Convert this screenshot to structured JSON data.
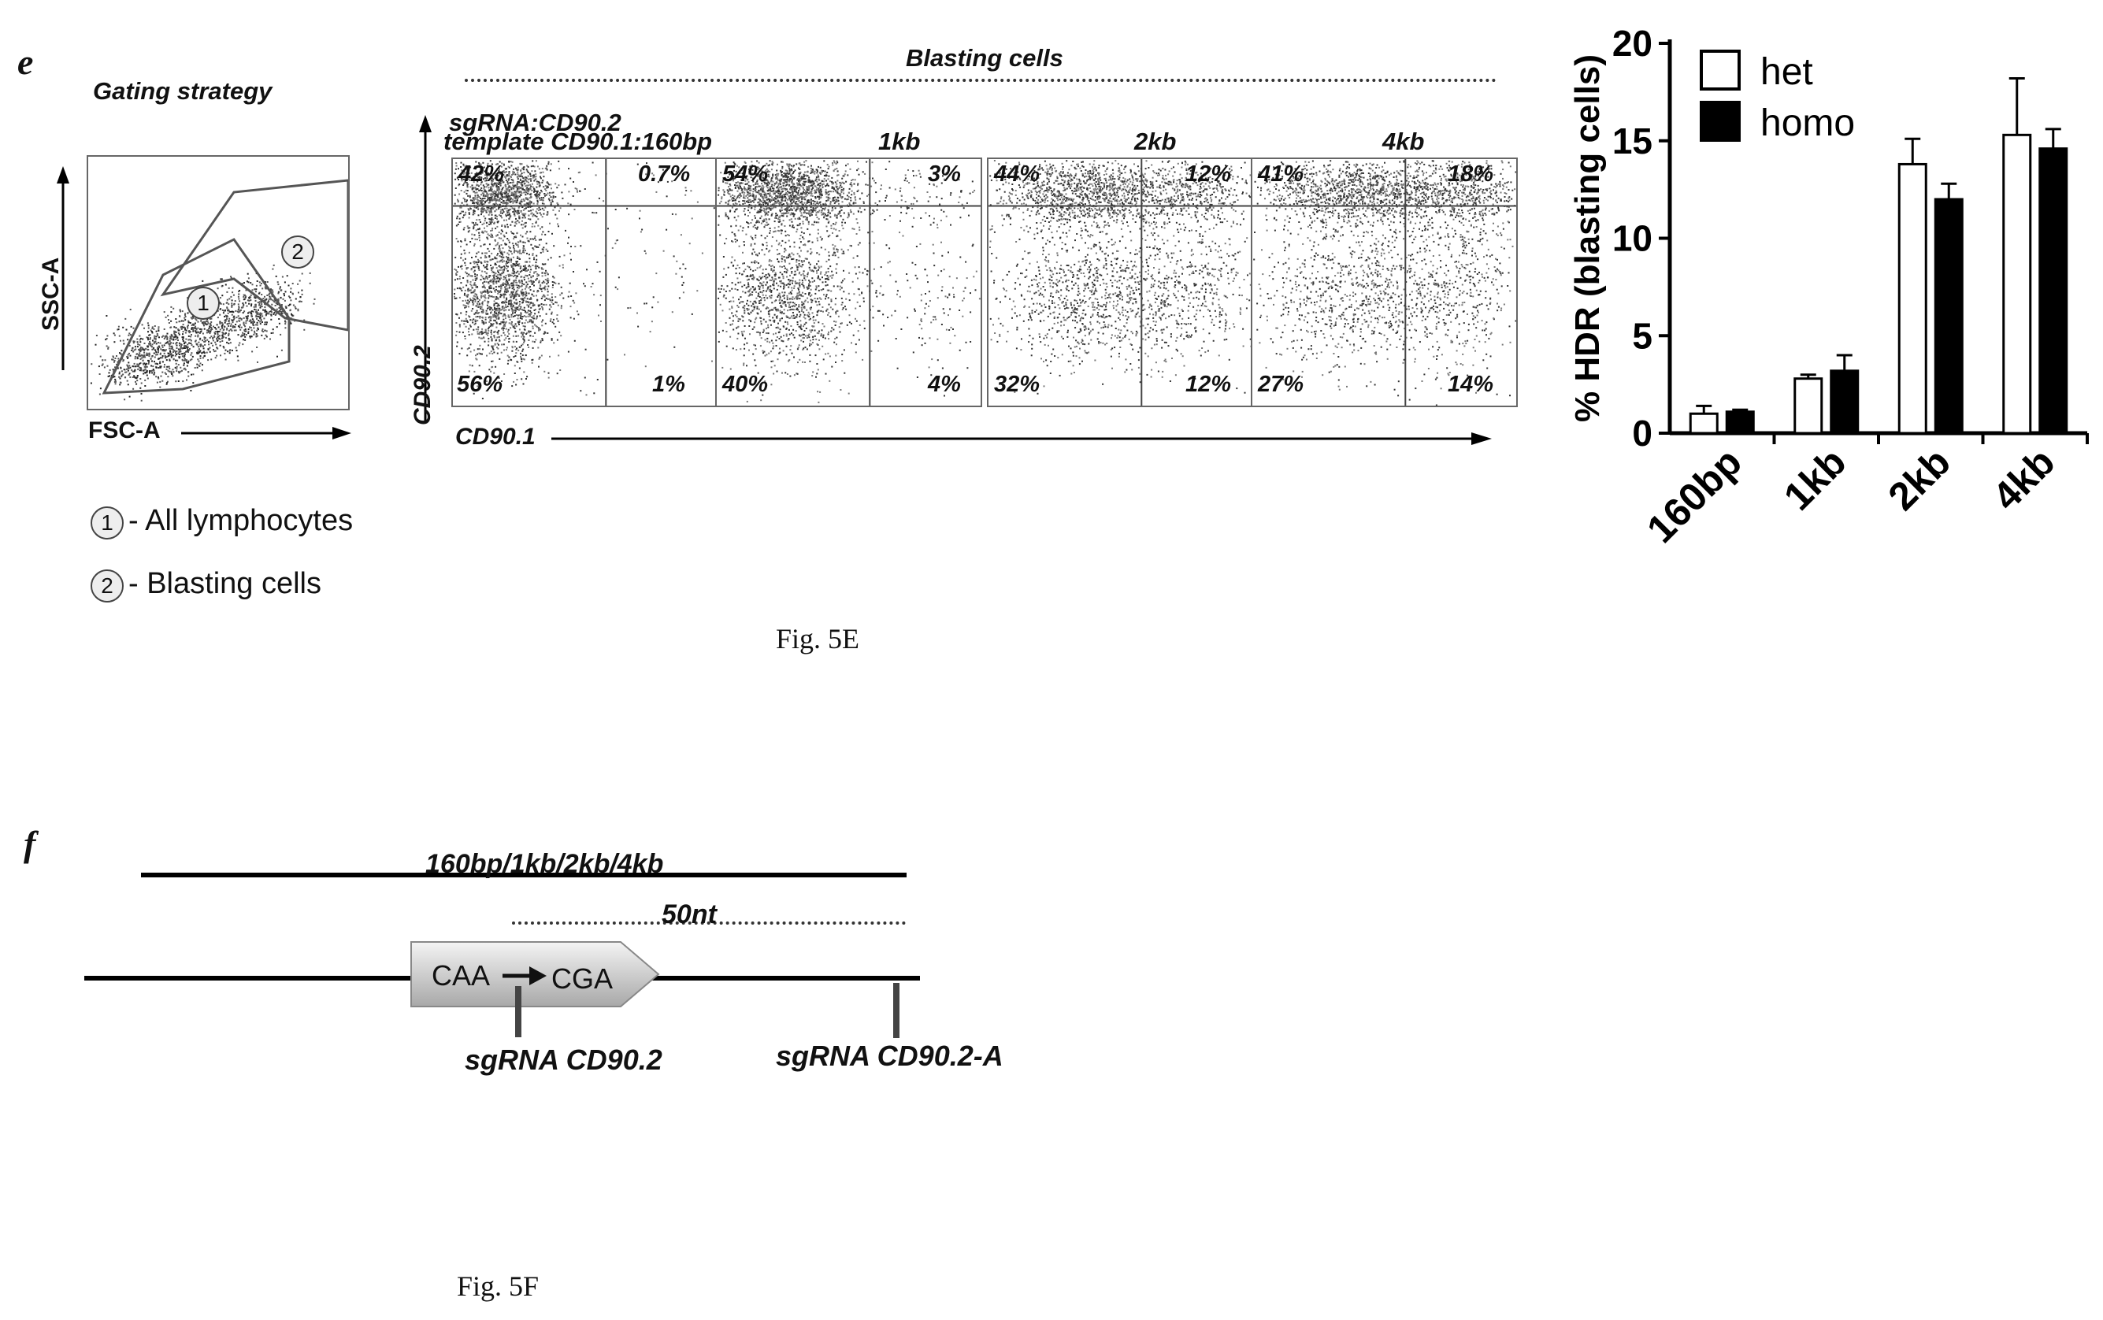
{
  "panel_e": {
    "letter": "e",
    "gating": {
      "title": "Gating strategy",
      "y_axis": "SSC-A",
      "x_axis": "FSC-A",
      "gate1_num": "1",
      "gate2_num": "2",
      "legend": [
        {
          "num": "1",
          "text": "- All lymphocytes"
        },
        {
          "num": "2",
          "text": "- Blasting cells"
        }
      ]
    },
    "facs": {
      "header": "Blasting cells",
      "sgrna_label": "sgRNA:CD90.2",
      "template_label": "template  CD90.1:160bp",
      "y_axis": "CD90.2",
      "x_axis": "CD90.1",
      "panels": [
        {
          "label": "",
          "ul": "42%",
          "ur": "0.7%",
          "ll": "56%",
          "lr": "1%"
        },
        {
          "label": "1kb",
          "ul": "54%",
          "ur": "3%",
          "ll": "40%",
          "lr": "4%"
        },
        {
          "label": "2kb",
          "ul": "44%",
          "ur": "12%",
          "ll": "32%",
          "lr": "12%"
        },
        {
          "label": "4kb",
          "ul": "41%",
          "ur": "18%",
          "ll": "27%",
          "lr": "14%"
        }
      ]
    },
    "caption": "Fig. 5E"
  },
  "chart_data": {
    "type": "bar",
    "categories": [
      "160bp",
      "1kb",
      "2kb",
      "4kb"
    ],
    "series": [
      {
        "name": "het",
        "values": [
          1.0,
          2.8,
          13.8,
          15.3
        ],
        "errors": [
          0.4,
          0.2,
          1.3,
          2.9
        ],
        "color": "#ffffff"
      },
      {
        "name": "homo",
        "values": [
          1.1,
          3.2,
          12.0,
          14.6
        ],
        "errors": [
          0.1,
          0.8,
          0.8,
          1.0
        ],
        "color": "#000000"
      }
    ],
    "ylabel": "% HDR (blasting cells)",
    "ylim": [
      0,
      20
    ],
    "yticks": [
      0,
      5,
      10,
      15,
      20
    ],
    "legend": "top-left"
  },
  "panel_f": {
    "letter": "f",
    "template_label": "160bp/1kb/2kb/4kb",
    "dist_label": "50nt",
    "codon_from": "CAA",
    "codon_to": "CGA",
    "sgrna1": "sgRNA CD90.2",
    "sgrna2": "sgRNA CD90.2-A",
    "caption": "Fig. 5F"
  }
}
